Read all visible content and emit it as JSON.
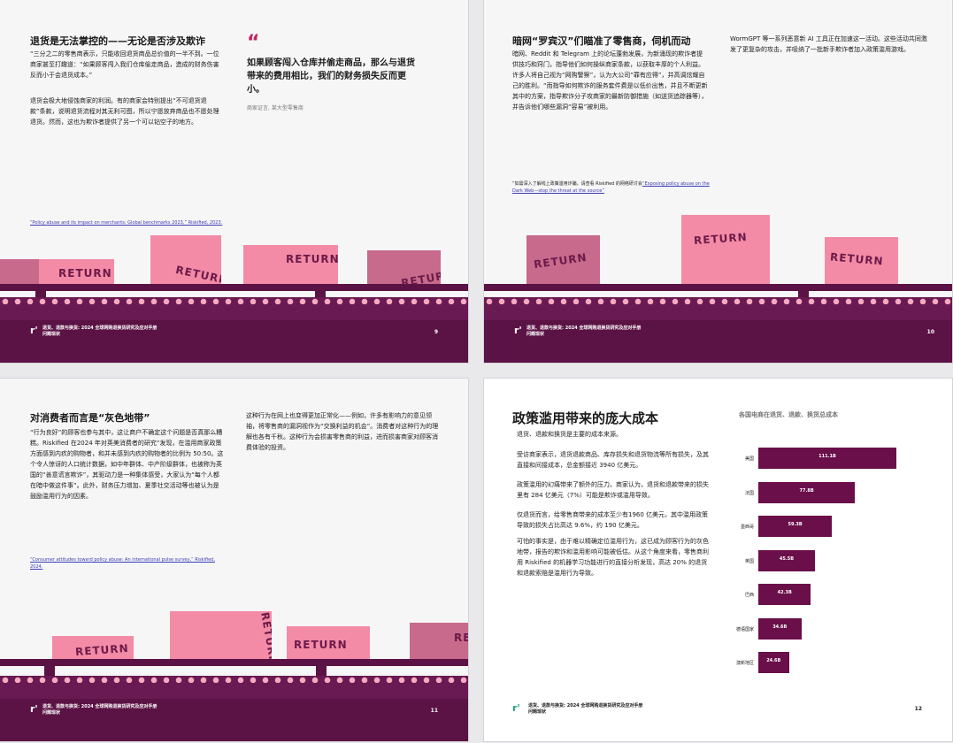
{
  "p1": {
    "heading": "退货是无法掌控的——无论是否涉及欺诈",
    "para1": "“三分之二的零售商表示，只能收回退货商品总价值的一半不到。一位商家甚至打趣道：“如果顾客闯入我们仓库偷走商品，造成的财务伤害反而小于会退货成本。”",
    "para2": "退货会极大地侵蚀商家的利润。有的商家会特别提出“不可退货退款”条款，说明退货流程对其无利可图，所以宁愿放弃商品也不愿处理退货。然而，这也为欺诈者提供了另一个可以钻空子的地方。",
    "quote_mark": "“",
    "quote": "如果顾客闯入仓库并偷走商品，那么与退货带来的费用相比，我们的财务损失反而更小。",
    "attribution": "商家证言, 某大型零售商",
    "footnote": "“Policy abuse and its impact on merchants: Global benchmarks 2023,” Riskified, 2023.",
    "box_label": "RETURN",
    "footer_logo": "r'",
    "footer_line1": "退货、退款与换货: 2024 全球网购退换货研究及应对手册",
    "footer_line2": "问题现状",
    "page_number": "9"
  },
  "p2": {
    "heading": "暗网“罗宾汉”们瞄准了零售商，伺机而动",
    "para1": "暗网、Reddit 和 Telegram 上的论坛蓬勃发展，为新涌现的欺诈者提供技巧和窍门，指导他们如何操纵商家条款，以获取丰厚的个人利益。许多人将自己视为“网购警察”，认为大公司“罪有应得”，并高调炫耀自己的胜利。“而指导如何欺诈的服务套件费是以低价出售，并且不断更新其中的方案，指导欺诈分子攻商家的最新防御措施（如送货追踪器等），并告诉他们哪些漏洞“容易”被利用。",
    "para2": "WormGPT 等一系列恶意新 AI 工具正在加速这一活动。这些活动共同激发了更复杂的攻击，并吸纳了一批新手欺诈者加入政策滥用游戏。",
    "footnote_prefix": "“如需深入了解线上政策滥用诈骗，请查看 Riskified 的网络研讨会",
    "footnote_link": "“Exposing policy abuse on the Dark Web—stop the threat at the source”",
    "box_label": "RETURN",
    "footer_logo": "r'",
    "footer_line1": "退货、退款与换货: 2024 全球网购退换货研究及应对手册",
    "footer_line2": "问题现状",
    "page_number": "10"
  },
  "p3": {
    "heading": "对消费者而言是“灰色地带”",
    "para1": "“行为良好”的顾客也参与其中，这让商户不确定这个问题是否真那么糟糕。Riskified 在2024 年对英美消费者的研究“发现，在滥用商家政策方面感到内疚的购物者，和并未感到内疚的购物者的比例为 50:50。这个令人惊讶的人口统计数据，如中年群体、中产阶级群体，也被称为英国的“善意谎言欺诈”，其驱动力是一种集体感受，大家认为“每个人都在暗中做这件事”。此外，财务压力增加、夏季社交活动等也被认为是鼓励滥用行为的因素。",
    "para2": "这种行为在网上也变得更加正常化——例如，许多有影响力的意见领袖，将零售商的漏洞视作为“交换利益的机会”。消费者对这种行为的理解也各有千秋。这种行为会损害零售商的利益，进而损害商家对顾客消费体验的投资。",
    "footnote": "“Consumer attitudes toward policy abuse: An international pulse survey,” Riskified, 2024.",
    "box_label": "RETURN",
    "footer_logo": "r'",
    "footer_line1": "退货、退款与换货: 2024 全球网购退换货研究及应对手册",
    "footer_line2": "问题现状",
    "page_number": "11"
  },
  "p4": {
    "heading": "政策滥用带来的庞大成本",
    "sub": "退货、退款和换货是主要的成本来源。",
    "para1": "受访商家表示，退货退款商品、库存损失和退货物流等所有损失，及其直接和间接成本，总金额接近 3940 亿美元。",
    "para2": "政策滥用的幻痛带来了额外的压力。商家认为，退货和退款带来的损失里有 284 亿美元（7%）可能是欺诈或滥用导致。",
    "para3": "仅退货而言，给零售商带来的成本至少有1960 亿美元，其中滥用政策导致的损失占比高达 9.6%，约 190 亿美元。",
    "para4": "可怕的事实是，由于难以精确定位滥用行为，这已成为顾客行为的灰色地带，报告的欺诈和滥用影响可能被低估。从这个角度来看，零售商利用 Riskified 的机器学习功能进行的直接分析发现，高达 20% 的退货和退款索赔是滥用行为导致。",
    "footer_logo": "r'",
    "footer_line1": "退货、退款与换货: 2024 全球网购退换货研究及应对手册",
    "footer_line2": "问题现状",
    "page_number": "12"
  },
  "chart_data": {
    "type": "bar",
    "orientation": "horizontal",
    "title": "各国电商在退货、退款、换货总成本",
    "categories": [
      "美国",
      "法国",
      "墨西哥",
      "英国",
      "巴西",
      "德语国家",
      "澳新地区"
    ],
    "values": [
      111.1,
      77.8,
      59.3,
      45.5,
      42.3,
      34.6,
      24.6
    ],
    "value_labels": [
      "111.1B",
      "77.8B",
      "59.3B",
      "45.5B",
      "42.3B",
      "34.6B",
      "24.6B"
    ],
    "xlim": [
      0,
      115
    ],
    "bar_color": "#6a0f4a"
  }
}
